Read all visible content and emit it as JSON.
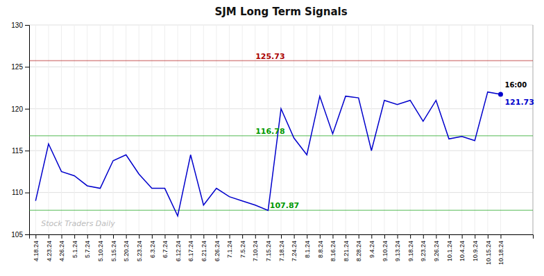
{
  "chart_data": {
    "type": "line",
    "title": "SJM Long Term Signals",
    "color": "#0000cc",
    "categories": [
      "4.18.24",
      "4.23.24",
      "4.26.24",
      "5.1.24",
      "5.7.24",
      "5.10.24",
      "5.15.24",
      "5.20.24",
      "5.23.24",
      "6.3.24",
      "6.7.24",
      "6.12.24",
      "6.17.24",
      "6.21.24",
      "6.26.24",
      "7.1.24",
      "7.5.24",
      "7.10.24",
      "7.15.24",
      "7.18.24",
      "7.24.24",
      "8.1.24",
      "8.8.24",
      "8.16.24",
      "8.21.24",
      "8.28.24",
      "9.4.24",
      "9.10.24",
      "9.13.24",
      "9.18.24",
      "9.23.24",
      "9.26.24",
      "10.1.24",
      "10.4.24",
      "10.9.24",
      "10.15.24",
      "10.18.24"
    ],
    "values": [
      109.0,
      115.8,
      112.5,
      112.0,
      110.8,
      110.5,
      113.8,
      114.5,
      112.2,
      110.5,
      110.5,
      107.2,
      114.5,
      108.5,
      110.5,
      109.5,
      109.0,
      108.5,
      107.87,
      120.0,
      116.5,
      114.5,
      121.5,
      117.0,
      121.5,
      121.3,
      115.0,
      121.0,
      120.5,
      121.0,
      118.5,
      121.0,
      116.4,
      116.7,
      116.2,
      122.0,
      121.73
    ],
    "ylim": [
      105,
      130
    ],
    "yticks": [
      105,
      110,
      115,
      120,
      125,
      130
    ],
    "grid": true,
    "reference_lines": [
      {
        "value": 125.73,
        "label": "125.73",
        "color": "#aa0000"
      },
      {
        "value": 116.78,
        "label": "116.78",
        "color": "#009900"
      },
      {
        "value": 107.87,
        "label": "107.87",
        "color": "#009900"
      }
    ],
    "annotations": {
      "last_time": "16:00",
      "last_price": "121.73",
      "watermark": "Stock Traders Daily"
    }
  }
}
